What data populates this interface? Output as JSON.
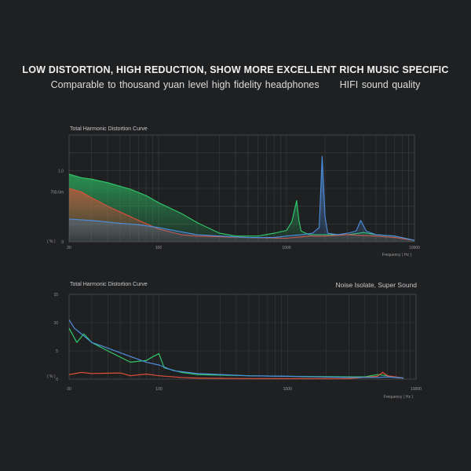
{
  "header": {
    "headline": "LOW DISTORTION, HIGH REDUCTION, SHOW MORE EXCELLENT RICH MUSIC SPECIFIC",
    "sub_left": "Comparable to thousand yuan level high fidelity headphones",
    "sub_right": "HIFI sound quality"
  },
  "chart_data": [
    {
      "type": "area",
      "title": "Total Harmonic Distortion Curve",
      "xlabel": "Frequency ( Hz )",
      "ylabel": "( % )",
      "x_scale": "log",
      "xlim": [
        20,
        10000
      ],
      "ylim": [
        0,
        1.5
      ],
      "x_ticks": [
        "20",
        "100",
        "1000",
        "10000"
      ],
      "y_ticks": [
        "0",
        "700.0m",
        "1.0"
      ],
      "grid": true,
      "colors": {
        "green": "#2fcc6a",
        "red": "#e0503a",
        "blue": "#4d8fe0"
      },
      "series": [
        {
          "color": "green",
          "points": [
            [
              20,
              0.95
            ],
            [
              25,
              0.9
            ],
            [
              30,
              0.88
            ],
            [
              40,
              0.83
            ],
            [
              50,
              0.78
            ],
            [
              60,
              0.74
            ],
            [
              80,
              0.65
            ],
            [
              100,
              0.55
            ],
            [
              150,
              0.4
            ],
            [
              200,
              0.27
            ],
            [
              300,
              0.12
            ],
            [
              400,
              0.08
            ],
            [
              600,
              0.08
            ],
            [
              800,
              0.12
            ],
            [
              1000,
              0.16
            ],
            [
              1100,
              0.28
            ],
            [
              1200,
              0.58
            ],
            [
              1250,
              0.3
            ],
            [
              1300,
              0.15
            ],
            [
              1500,
              0.1
            ],
            [
              2000,
              0.1
            ],
            [
              3000,
              0.1
            ],
            [
              4000,
              0.13
            ],
            [
              5000,
              0.1
            ],
            [
              7000,
              0.08
            ],
            [
              10000,
              0.02
            ]
          ]
        },
        {
          "color": "red",
          "points": [
            [
              20,
              0.75
            ],
            [
              25,
              0.7
            ],
            [
              30,
              0.62
            ],
            [
              40,
              0.5
            ],
            [
              50,
              0.42
            ],
            [
              70,
              0.3
            ],
            [
              100,
              0.18
            ],
            [
              150,
              0.1
            ],
            [
              200,
              0.08
            ],
            [
              500,
              0.06
            ],
            [
              1000,
              0.05
            ],
            [
              1500,
              0.08
            ],
            [
              2000,
              0.08
            ],
            [
              3000,
              0.1
            ],
            [
              5000,
              0.08
            ],
            [
              7000,
              0.06
            ],
            [
              10000,
              0.02
            ]
          ]
        },
        {
          "color": "blue",
          "points": [
            [
              20,
              0.32
            ],
            [
              30,
              0.3
            ],
            [
              50,
              0.26
            ],
            [
              70,
              0.24
            ],
            [
              100,
              0.2
            ],
            [
              150,
              0.14
            ],
            [
              200,
              0.1
            ],
            [
              300,
              0.08
            ],
            [
              500,
              0.06
            ],
            [
              800,
              0.06
            ],
            [
              1000,
              0.08
            ],
            [
              1300,
              0.1
            ],
            [
              1600,
              0.12
            ],
            [
              1800,
              0.2
            ],
            [
              1900,
              1.2
            ],
            [
              2000,
              0.35
            ],
            [
              2100,
              0.12
            ],
            [
              2500,
              0.1
            ],
            [
              3000,
              0.12
            ],
            [
              3500,
              0.15
            ],
            [
              3800,
              0.3
            ],
            [
              4200,
              0.15
            ],
            [
              5000,
              0.1
            ],
            [
              7000,
              0.08
            ],
            [
              10000,
              0.02
            ]
          ]
        }
      ]
    },
    {
      "type": "line",
      "title": "Total Harmonic Distortion Curve",
      "annotation": "Noise Isolate, Super Sound",
      "xlabel": "Frequency ( Hz )",
      "ylabel": "( % )",
      "x_scale": "log",
      "xlim": [
        20,
        10000
      ],
      "ylim": [
        0,
        15
      ],
      "x_ticks": [
        "20",
        "100",
        "1000",
        "10000"
      ],
      "y_ticks": [
        "0",
        "5",
        "10",
        "15"
      ],
      "grid": true,
      "series": [
        {
          "color": "green",
          "points": [
            [
              20,
              9
            ],
            [
              23,
              6.5
            ],
            [
              26,
              8
            ],
            [
              30,
              6.5
            ],
            [
              40,
              5
            ],
            [
              60,
              3
            ],
            [
              80,
              3.3
            ],
            [
              90,
              4
            ],
            [
              100,
              4.5
            ],
            [
              110,
              2
            ],
            [
              150,
              1.2
            ],
            [
              200,
              0.8
            ],
            [
              500,
              0.6
            ],
            [
              1000,
              0.5
            ],
            [
              3000,
              0.4
            ],
            [
              4000,
              0.4
            ],
            [
              5000,
              0.8
            ],
            [
              6000,
              0.6
            ],
            [
              7000,
              0.3
            ],
            [
              8000,
              0.2
            ]
          ]
        },
        {
          "color": "red",
          "points": [
            [
              20,
              0.8
            ],
            [
              25,
              1.2
            ],
            [
              30,
              1
            ],
            [
              50,
              1.1
            ],
            [
              60,
              0.6
            ],
            [
              80,
              0.9
            ],
            [
              100,
              0.6
            ],
            [
              150,
              0.3
            ],
            [
              200,
              0.2
            ],
            [
              500,
              0.1
            ],
            [
              1000,
              0.1
            ],
            [
              3000,
              0.1
            ],
            [
              5000,
              0.5
            ],
            [
              5500,
              1.2
            ],
            [
              6000,
              0.6
            ],
            [
              8000,
              0.2
            ]
          ]
        },
        {
          "color": "blue",
          "points": [
            [
              20,
              10.5
            ],
            [
              22,
              9
            ],
            [
              25,
              8
            ],
            [
              30,
              6.5
            ],
            [
              40,
              5.5
            ],
            [
              60,
              4
            ],
            [
              80,
              3
            ],
            [
              100,
              2.5
            ],
            [
              130,
              1.5
            ],
            [
              200,
              1
            ],
            [
              500,
              0.6
            ],
            [
              1000,
              0.5
            ],
            [
              3000,
              0.3
            ],
            [
              5000,
              0.3
            ],
            [
              6000,
              0.4
            ],
            [
              8000,
              0.2
            ]
          ]
        }
      ]
    }
  ]
}
